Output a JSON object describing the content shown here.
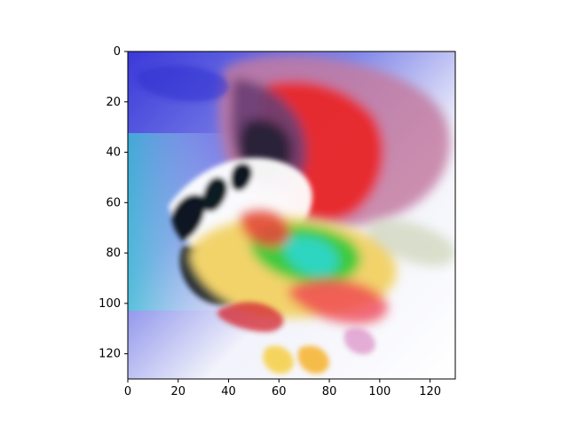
{
  "chart_data": {
    "type": "image",
    "title": "",
    "xlabel": "",
    "ylabel": "",
    "xlim": [
      0,
      130
    ],
    "ylim": [
      130,
      0
    ],
    "y_inverted": true,
    "grid": false,
    "legend": "none",
    "xticks": [
      0,
      20,
      40,
      60,
      80,
      100,
      120
    ],
    "yticks": [
      0,
      20,
      40,
      60,
      80,
      100,
      120
    ],
    "xtick_labels": [
      "0",
      "20",
      "40",
      "60",
      "80",
      "100",
      "120"
    ],
    "ytick_labels": [
      "0",
      "20",
      "40",
      "60",
      "80",
      "100",
      "120"
    ],
    "image_content": "abstract colorful generated image",
    "dominant_colors": [
      "#3a3fe0",
      "#e8282a",
      "#f2d36b",
      "#1b2a3c",
      "#37d8d2",
      "#35c93a",
      "#f6f6fb"
    ]
  }
}
